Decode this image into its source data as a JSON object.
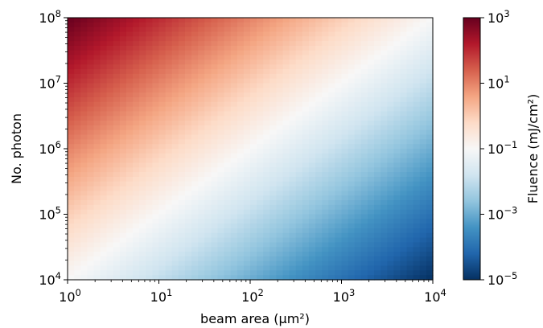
{
  "chart_data": {
    "type": "heatmap",
    "title": "",
    "xlabel": "beam area (μm²)",
    "ylabel": "No. photon",
    "colorbar_label": "Fluence (mJ/cm²)",
    "x_scale": "log",
    "y_scale": "log",
    "color_scale": "log",
    "xlim": [
      1,
      10000
    ],
    "ylim": [
      10000,
      100000000
    ],
    "clim": [
      1e-05,
      1000
    ],
    "x_ticks": [
      {
        "base": "10",
        "exp": "0"
      },
      {
        "base": "10",
        "exp": "1"
      },
      {
        "base": "10",
        "exp": "2"
      },
      {
        "base": "10",
        "exp": "3"
      },
      {
        "base": "10",
        "exp": "4"
      }
    ],
    "y_ticks": [
      {
        "base": "10",
        "exp": "4"
      },
      {
        "base": "10",
        "exp": "5"
      },
      {
        "base": "10",
        "exp": "6"
      },
      {
        "base": "10",
        "exp": "7"
      },
      {
        "base": "10",
        "exp": "8"
      }
    ],
    "colorbar_ticks": [
      {
        "base": "10",
        "exp": "−5"
      },
      {
        "base": "10",
        "exp": "−3"
      },
      {
        "base": "10",
        "exp": "−1"
      },
      {
        "base": "10",
        "exp": "1"
      },
      {
        "base": "10",
        "exp": "3"
      }
    ],
    "colormap": "RdBu_r",
    "colormap_stops": [
      "#053061",
      "#2166ac",
      "#4393c3",
      "#92c5de",
      "#d1e5f0",
      "#f7f7f7",
      "#fddbc7",
      "#f4a582",
      "#d6604d",
      "#b2182b",
      "#67001f"
    ],
    "grid": false
  }
}
